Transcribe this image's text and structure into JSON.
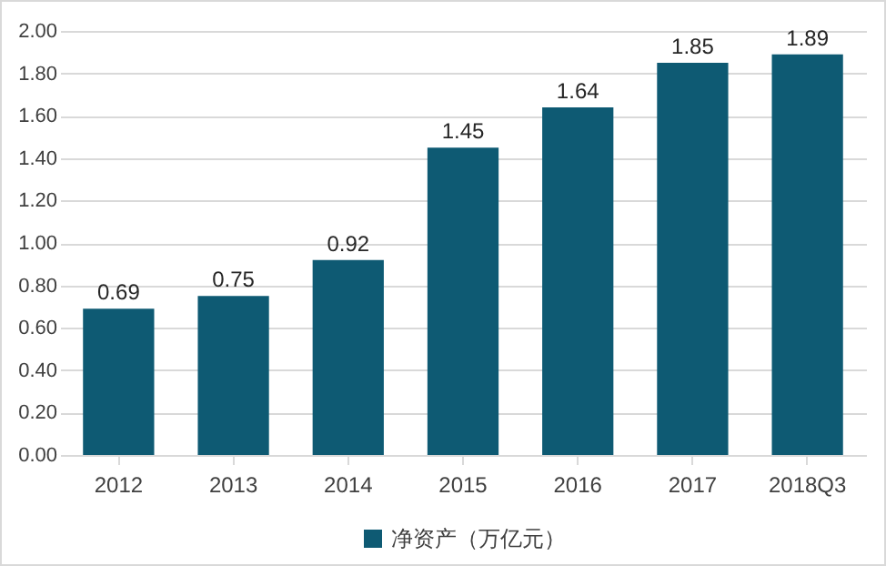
{
  "chart_data": {
    "type": "bar",
    "categories": [
      "2012",
      "2013",
      "2014",
      "2015",
      "2016",
      "2017",
      "2018Q3"
    ],
    "series": [
      {
        "name": "净资产（万亿元）",
        "color": "#0e5a73",
        "values": [
          0.69,
          0.75,
          0.92,
          1.45,
          1.64,
          1.85,
          1.89
        ]
      }
    ],
    "ylim": [
      0,
      2
    ],
    "yticks": [
      {
        "value": 0,
        "label": "0.00"
      },
      {
        "value": 0.2,
        "label": "0.20"
      },
      {
        "value": 0.4,
        "label": "0.40"
      },
      {
        "value": 0.6,
        "label": "0.60"
      },
      {
        "value": 0.8,
        "label": "0.80"
      },
      {
        "value": 1,
        "label": "1.00"
      },
      {
        "value": 1.2,
        "label": "1.20"
      },
      {
        "value": 1.4,
        "label": "1.40"
      },
      {
        "value": 1.6,
        "label": "1.60"
      },
      {
        "value": 1.8,
        "label": "1.80"
      },
      {
        "value": 2,
        "label": "2.00"
      }
    ],
    "grid": "y",
    "legend": "bottom",
    "data_labels": true
  }
}
